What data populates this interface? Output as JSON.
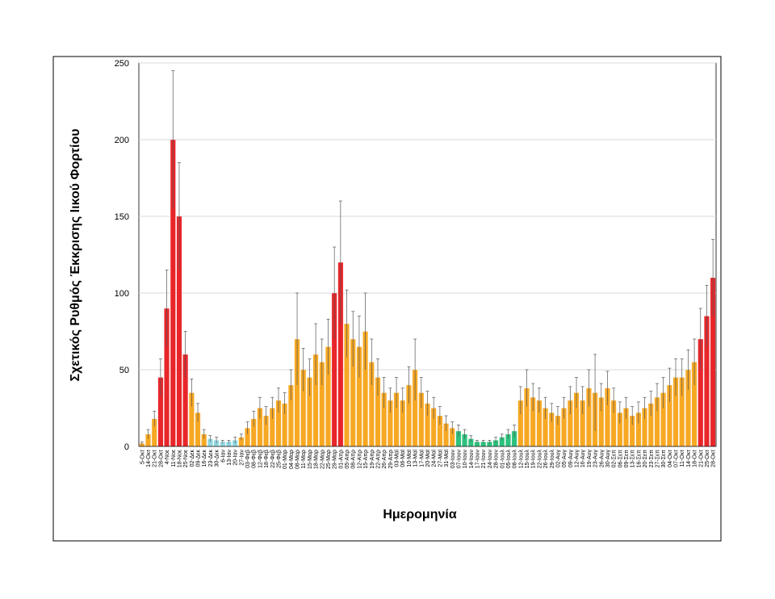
{
  "chart_data": {
    "type": "bar",
    "y_label": "Σχετικός Ρυθμός Έκκρισης Ιικού Φορτίου",
    "x_label": "Ημερομηνία",
    "ylim": [
      0,
      250
    ],
    "yticks": [
      0,
      50,
      100,
      150,
      200,
      250
    ],
    "grid": true,
    "categories": [
      "5-Οκτ",
      "14-Οκτ",
      "21-Οκτ",
      "28-Οκτ",
      "4-Νοε",
      "11-Νοε",
      "18-Νοε",
      "25-Νοε",
      "02-Δεκ",
      "09-Δεκ",
      "16-Δεκ",
      "23-Δεκ",
      "30-Δεκ",
      "6-Ιαν",
      "13-Ιαν",
      "20-Ιαν",
      "27-Ιαν",
      "03-Φεβ",
      "08-Φεβ",
      "12-Φεβ",
      "18-Φεβ",
      "22-Φεβ",
      "25-Φεβ",
      "01-Μαρ",
      "04-Μαρ",
      "08-Μαρ",
      "11-Μαρ",
      "15-Μαρ",
      "18-Μαρ",
      "22-Μαρ",
      "25-Μαρ",
      "29-Μαρ",
      "01-Απρ",
      "05-Απρ",
      "08-Απρ",
      "12-Απρ",
      "15-Απρ",
      "19-Απρ",
      "22-Απρ",
      "26-Απρ",
      "29-Απρ",
      "03-Μαϊ",
      "06-Μαϊ",
      "10-Μαϊ",
      "13-Μαϊ",
      "17-Μαϊ",
      "20-Μαϊ",
      "24-Μαϊ",
      "27-Μαϊ",
      "31-Μαϊ",
      "03-Ιουν",
      "07-Ιουν",
      "10-Ιουν",
      "14-Ιουν",
      "17-Ιουν",
      "21-Ιουν",
      "24-Ιουν",
      "28-Ιουν",
      "01-Ιουλ",
      "05-Ιουλ",
      "08-Ιουλ",
      "12-Ιουλ",
      "15-Ιουλ",
      "19-Ιουλ",
      "22-Ιουλ",
      "26-Ιουλ",
      "29-Ιουλ",
      "02-Αυγ",
      "05-Αυγ",
      "09-Αυγ",
      "12-Αυγ",
      "16-Αυγ",
      "19-Αυγ",
      "23-Αυγ",
      "26-Αυγ",
      "30-Αυγ",
      "02-Σεπ",
      "06-Σεπ",
      "09-Σεπ",
      "13-Σεπ",
      "16-Σεπ",
      "20-Σεπ",
      "23-Σεπ",
      "27-Σεπ",
      "30-Σεπ",
      "04-Οκτ",
      "07-Οκτ",
      "11-Οκτ",
      "14-Οκτ",
      "18-Οκτ",
      "21-Οκτ",
      "25-Οκτ",
      "28-Οκτ"
    ],
    "values": [
      2,
      8,
      18,
      45,
      90,
      200,
      150,
      60,
      35,
      22,
      8,
      5,
      4,
      3,
      3,
      4,
      6,
      12,
      18,
      25,
      20,
      25,
      30,
      28,
      40,
      70,
      50,
      45,
      60,
      55,
      65,
      100,
      120,
      80,
      70,
      65,
      75,
      55,
      45,
      35,
      30,
      35,
      30,
      40,
      50,
      35,
      28,
      25,
      20,
      15,
      12,
      10,
      8,
      5,
      3,
      3,
      3,
      4,
      6,
      8,
      10,
      30,
      38,
      32,
      30,
      25,
      22,
      20,
      25,
      30,
      35,
      30,
      38,
      35,
      32,
      38,
      30,
      22,
      25,
      20,
      22,
      25,
      28,
      32,
      35,
      40,
      45,
      45,
      50,
      55,
      70,
      85,
      110
    ],
    "errors": [
      1,
      3,
      5,
      12,
      25,
      45,
      35,
      15,
      9,
      6,
      3,
      2,
      2,
      1,
      1,
      2,
      2,
      4,
      5,
      7,
      6,
      7,
      8,
      7,
      10,
      30,
      14,
      12,
      20,
      15,
      18,
      30,
      40,
      22,
      18,
      20,
      25,
      15,
      12,
      10,
      8,
      10,
      8,
      12,
      20,
      10,
      8,
      7,
      6,
      5,
      4,
      4,
      3,
      2,
      1,
      1,
      1,
      2,
      2,
      3,
      4,
      9,
      12,
      9,
      8,
      7,
      6,
      6,
      7,
      9,
      10,
      9,
      12,
      25,
      9,
      11,
      8,
      7,
      7,
      6,
      7,
      7,
      8,
      9,
      10,
      11,
      12,
      12,
      13,
      15,
      20,
      20,
      25
    ],
    "colors": [
      "#f7a823",
      "#f7a823",
      "#f7a823",
      "#e8262a",
      "#e8262a",
      "#e8262a",
      "#e8262a",
      "#e8262a",
      "#f7a823",
      "#f7a823",
      "#f7a823",
      "#8fd6e0",
      "#8fd6e0",
      "#8fd6e0",
      "#8fd6e0",
      "#8fd6e0",
      "#f7a823",
      "#f7a823",
      "#f7a823",
      "#f7a823",
      "#f7a823",
      "#f7a823",
      "#f7a823",
      "#f7a823",
      "#f7a823",
      "#f7a823",
      "#f7a823",
      "#f7a823",
      "#f7a823",
      "#f7a823",
      "#f7a823",
      "#e8262a",
      "#e8262a",
      "#f7a823",
      "#f7a823",
      "#f7a823",
      "#f7a823",
      "#f7a823",
      "#f7a823",
      "#f7a823",
      "#f7a823",
      "#f7a823",
      "#f7a823",
      "#f7a823",
      "#f7a823",
      "#f7a823",
      "#f7a823",
      "#f7a823",
      "#f7a823",
      "#f7a823",
      "#f7a823",
      "#2ec27e",
      "#2ec27e",
      "#2ec27e",
      "#2ec27e",
      "#2ec27e",
      "#2ec27e",
      "#2ec27e",
      "#2ec27e",
      "#2ec27e",
      "#2ec27e",
      "#f7a823",
      "#f7a823",
      "#f7a823",
      "#f7a823",
      "#f7a823",
      "#f7a823",
      "#f7a823",
      "#f7a823",
      "#f7a823",
      "#f7a823",
      "#f7a823",
      "#f7a823",
      "#f7a823",
      "#f7a823",
      "#f7a823",
      "#f7a823",
      "#f7a823",
      "#f7a823",
      "#f7a823",
      "#f7a823",
      "#f7a823",
      "#f7a823",
      "#f7a823",
      "#f7a823",
      "#f7a823",
      "#f7a823",
      "#f7a823",
      "#f7a823",
      "#f7a823",
      "#e8262a",
      "#e8262a",
      "#e8262a"
    ]
  }
}
